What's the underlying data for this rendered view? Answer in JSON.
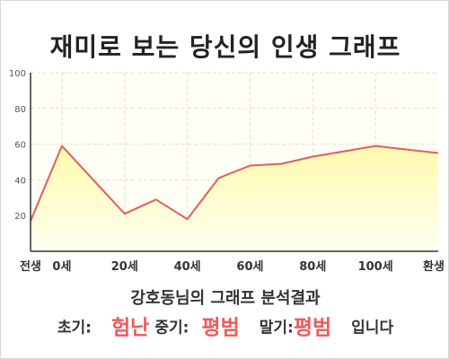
{
  "header": {
    "title": "재미로 보는 당신의 인생 그래프"
  },
  "chart_data": {
    "type": "area",
    "title": "",
    "xlabel": "",
    "ylabel": "",
    "ylim": [
      0,
      100
    ],
    "yticks": [
      20,
      40,
      60,
      80,
      100
    ],
    "grid": true,
    "x_ticks": [
      {
        "x": -10,
        "label": "전생"
      },
      {
        "x": 0,
        "label": "0세"
      },
      {
        "x": 20,
        "label": "20세"
      },
      {
        "x": 40,
        "label": "40세"
      },
      {
        "x": 60,
        "label": "60세"
      },
      {
        "x": 80,
        "label": "80세"
      },
      {
        "x": 100,
        "label": "100세"
      },
      {
        "x": 120,
        "label": "환생"
      }
    ],
    "series": [
      {
        "x": [
          -10,
          0,
          20,
          30,
          40,
          50,
          60,
          70,
          80,
          90,
          100,
          110,
          120
        ],
        "values": [
          17,
          59,
          21,
          29,
          18,
          41,
          48,
          49,
          53,
          56,
          59,
          57,
          55
        ]
      }
    ],
    "colors": {
      "line": "#e65c5c",
      "fill_top": "#fffaae",
      "fill_bottom": "#fffff0",
      "plot_bg": "#fffff5",
      "grid": "#ecdcc4",
      "axis": "#333333"
    }
  },
  "summary": {
    "heading": "강호동님의 그래프 분석결과",
    "early_label": "초기:",
    "early_value": "험난",
    "middle_label": "중기:",
    "middle_value": "평범",
    "late_label": "말기:",
    "late_value": "평범",
    "closing": "입니다",
    "value_color": "#f05a5a"
  }
}
